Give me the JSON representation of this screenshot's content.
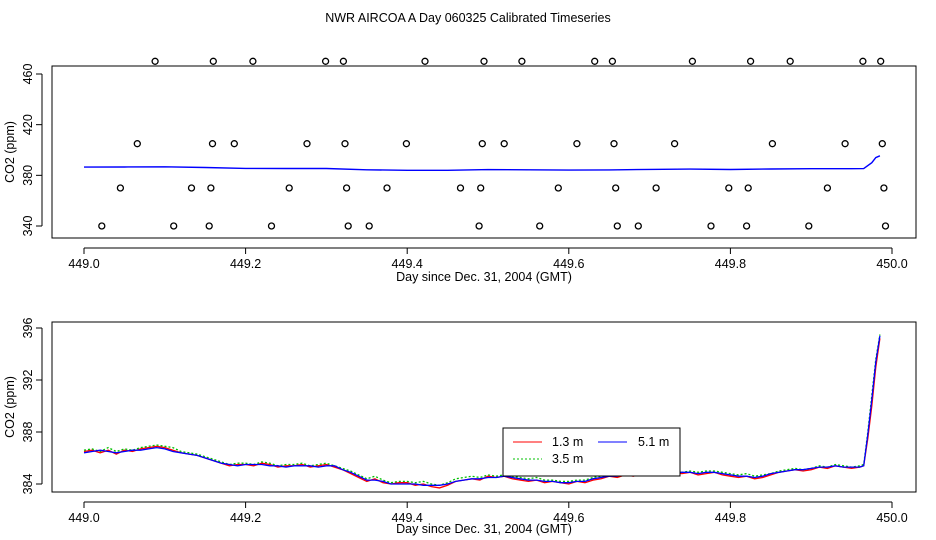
{
  "title": "NWR AIRCOA A  Day 060325  Calibrated Timeseries",
  "chart_data": [
    {
      "type": "scatter",
      "xlabel": "Day since Dec. 31, 2004 (GMT)",
      "ylabel": "CO2 (ppm)",
      "xlim": [
        449.0,
        450.0
      ],
      "ylim": [
        335,
        470
      ],
      "xticks": [
        449.0,
        449.2,
        449.4,
        449.6,
        449.8,
        450.0
      ],
      "xtick_labels": [
        "449.0",
        "449.2",
        "449.4",
        "449.6",
        "449.8",
        "450.0"
      ],
      "yticks": [
        340,
        380,
        420,
        460
      ],
      "ytick_labels": [
        "340",
        "380",
        "420",
        "460"
      ],
      "grid": false,
      "calibration_points": [
        {
          "x": 449.022,
          "y": 340
        },
        {
          "x": 449.045,
          "y": 370
        },
        {
          "x": 449.066,
          "y": 405
        },
        {
          "x": 449.088,
          "y": 470
        },
        {
          "x": 449.111,
          "y": 340
        },
        {
          "x": 449.133,
          "y": 370
        },
        {
          "x": 449.155,
          "y": 340
        },
        {
          "x": 449.157,
          "y": 370
        },
        {
          "x": 449.159,
          "y": 405
        },
        {
          "x": 449.16,
          "y": 470
        },
        {
          "x": 449.186,
          "y": 405
        },
        {
          "x": 449.209,
          "y": 470
        },
        {
          "x": 449.232,
          "y": 340
        },
        {
          "x": 449.254,
          "y": 370
        },
        {
          "x": 449.276,
          "y": 405
        },
        {
          "x": 449.299,
          "y": 470
        },
        {
          "x": 449.321,
          "y": 470
        },
        {
          "x": 449.323,
          "y": 405
        },
        {
          "x": 449.325,
          "y": 370
        },
        {
          "x": 449.327,
          "y": 340
        },
        {
          "x": 449.353,
          "y": 340
        },
        {
          "x": 449.375,
          "y": 370
        },
        {
          "x": 449.399,
          "y": 405
        },
        {
          "x": 449.422,
          "y": 470
        },
        {
          "x": 449.466,
          "y": 370
        },
        {
          "x": 449.489,
          "y": 340
        },
        {
          "x": 449.491,
          "y": 370
        },
        {
          "x": 449.493,
          "y": 405
        },
        {
          "x": 449.495,
          "y": 470
        },
        {
          "x": 449.52,
          "y": 405
        },
        {
          "x": 449.542,
          "y": 470
        },
        {
          "x": 449.564,
          "y": 340
        },
        {
          "x": 449.587,
          "y": 370
        },
        {
          "x": 449.61,
          "y": 405
        },
        {
          "x": 449.632,
          "y": 470
        },
        {
          "x": 449.654,
          "y": 470
        },
        {
          "x": 449.656,
          "y": 405
        },
        {
          "x": 449.658,
          "y": 370
        },
        {
          "x": 449.66,
          "y": 340
        },
        {
          "x": 449.686,
          "y": 340
        },
        {
          "x": 449.708,
          "y": 370
        },
        {
          "x": 449.731,
          "y": 405
        },
        {
          "x": 449.753,
          "y": 470
        },
        {
          "x": 449.776,
          "y": 340
        },
        {
          "x": 449.798,
          "y": 370
        },
        {
          "x": 449.82,
          "y": 340
        },
        {
          "x": 449.822,
          "y": 370
        },
        {
          "x": 449.825,
          "y": 470
        },
        {
          "x": 449.852,
          "y": 405
        },
        {
          "x": 449.874,
          "y": 470
        },
        {
          "x": 449.897,
          "y": 340
        },
        {
          "x": 449.92,
          "y": 370
        },
        {
          "x": 449.942,
          "y": 405
        },
        {
          "x": 449.964,
          "y": 470
        },
        {
          "x": 449.986,
          "y": 470
        },
        {
          "x": 449.988,
          "y": 405
        },
        {
          "x": 449.99,
          "y": 370
        },
        {
          "x": 449.992,
          "y": 340
        }
      ],
      "ambient_line": {
        "color": "#0000ff",
        "x": [
          449.0,
          449.05,
          449.1,
          449.15,
          449.2,
          449.25,
          449.3,
          449.35,
          449.4,
          449.45,
          449.5,
          449.55,
          449.6,
          449.65,
          449.7,
          449.75,
          449.8,
          449.85,
          449.9,
          449.95,
          449.965,
          449.975,
          449.98,
          449.985
        ],
        "y": [
          386.5,
          386.6,
          386.7,
          386.2,
          385.5,
          385.4,
          385.4,
          384.4,
          384.0,
          384.0,
          384.5,
          384.4,
          384.1,
          384.3,
          384.7,
          384.9,
          384.6,
          385.0,
          385.2,
          385.2,
          385.3,
          390,
          394,
          395.4
        ]
      }
    },
    {
      "type": "line",
      "xlabel": "Day since Dec. 31, 2004 (GMT)",
      "ylabel": "CO2 (ppm)",
      "xlim": [
        449.0,
        450.0
      ],
      "ylim": [
        383.5,
        396.3
      ],
      "xticks": [
        449.0,
        449.2,
        449.4,
        449.6,
        449.8,
        450.0
      ],
      "xtick_labels": [
        "449.0",
        "449.2",
        "449.4",
        "449.6",
        "449.8",
        "450.0"
      ],
      "yticks": [
        384,
        388,
        392,
        396
      ],
      "ytick_labels": [
        "384",
        "388",
        "392",
        "396"
      ],
      "grid": false,
      "legend_position": "bottom-center",
      "x": [
        449.0,
        449.01,
        449.02,
        449.03,
        449.04,
        449.05,
        449.06,
        449.07,
        449.08,
        449.09,
        449.1,
        449.11,
        449.12,
        449.13,
        449.14,
        449.15,
        449.16,
        449.17,
        449.18,
        449.19,
        449.2,
        449.21,
        449.22,
        449.23,
        449.24,
        449.25,
        449.26,
        449.27,
        449.28,
        449.29,
        449.3,
        449.31,
        449.32,
        449.33,
        449.34,
        449.35,
        449.36,
        449.37,
        449.38,
        449.39,
        449.4,
        449.41,
        449.42,
        449.43,
        449.44,
        449.45,
        449.46,
        449.47,
        449.48,
        449.49,
        449.5,
        449.51,
        449.52,
        449.53,
        449.54,
        449.55,
        449.56,
        449.57,
        449.58,
        449.59,
        449.6,
        449.61,
        449.62,
        449.63,
        449.64,
        449.65,
        449.66,
        449.67,
        449.68,
        449.69,
        449.7,
        449.71,
        449.72,
        449.73,
        449.74,
        449.75,
        449.76,
        449.77,
        449.78,
        449.79,
        449.8,
        449.81,
        449.82,
        449.83,
        449.84,
        449.85,
        449.86,
        449.87,
        449.88,
        449.89,
        449.9,
        449.91,
        449.92,
        449.93,
        449.94,
        449.95,
        449.96,
        449.965,
        449.97,
        449.975,
        449.98,
        449.985
      ],
      "series": [
        {
          "name": "1.3 m",
          "color": "#ff0000",
          "values": [
            386.5,
            386.6,
            386.4,
            386.6,
            386.3,
            386.6,
            386.5,
            386.7,
            386.8,
            386.9,
            386.8,
            386.6,
            386.4,
            386.3,
            386.2,
            386.0,
            385.8,
            385.6,
            385.4,
            385.5,
            385.5,
            385.4,
            385.6,
            385.5,
            385.3,
            385.4,
            385.4,
            385.5,
            385.3,
            385.4,
            385.5,
            385.3,
            385.1,
            384.8,
            384.5,
            384.2,
            384.4,
            384.1,
            384.0,
            384.1,
            384.1,
            383.9,
            384.0,
            383.8,
            383.7,
            383.9,
            384.2,
            384.3,
            384.4,
            384.3,
            384.6,
            384.5,
            384.6,
            384.4,
            384.3,
            384.2,
            384.3,
            384.1,
            384.2,
            384.1,
            384.0,
            384.2,
            384.1,
            384.3,
            384.4,
            384.6,
            384.5,
            384.7,
            384.6,
            384.8,
            384.7,
            384.8,
            384.7,
            384.9,
            384.8,
            384.9,
            384.7,
            384.8,
            384.9,
            384.7,
            384.6,
            384.5,
            384.6,
            384.4,
            384.5,
            384.7,
            384.9,
            385.0,
            385.1,
            385.0,
            385.1,
            385.3,
            385.2,
            385.4,
            385.3,
            385.2,
            385.3,
            385.4,
            387.5,
            390.0,
            393.0,
            395.2
          ]
        },
        {
          "name": "3.5 m",
          "color": "#00c000",
          "values": [
            386.6,
            386.7,
            386.5,
            386.8,
            386.5,
            386.7,
            386.6,
            386.8,
            386.9,
            387.0,
            386.9,
            386.8,
            386.5,
            386.4,
            386.3,
            386.1,
            385.9,
            385.7,
            385.5,
            385.6,
            385.6,
            385.5,
            385.7,
            385.6,
            385.4,
            385.5,
            385.5,
            385.6,
            385.4,
            385.5,
            385.6,
            385.4,
            385.2,
            385.0,
            384.7,
            384.4,
            384.6,
            384.3,
            384.1,
            384.2,
            384.2,
            384.1,
            384.2,
            384.0,
            383.9,
            384.1,
            384.4,
            384.5,
            384.6,
            384.5,
            384.7,
            384.6,
            384.7,
            384.6,
            384.5,
            384.4,
            384.5,
            384.3,
            384.3,
            384.2,
            384.2,
            384.3,
            384.3,
            384.5,
            384.6,
            384.7,
            384.7,
            384.9,
            384.8,
            384.9,
            384.9,
            385.0,
            384.9,
            385.0,
            384.9,
            385.0,
            384.9,
            385.0,
            385.0,
            384.9,
            384.8,
            384.7,
            384.8,
            384.6,
            384.7,
            384.8,
            385.0,
            385.1,
            385.2,
            385.1,
            385.2,
            385.4,
            385.3,
            385.5,
            385.4,
            385.3,
            385.4,
            385.5,
            388.0,
            390.8,
            393.6,
            395.5
          ]
        },
        {
          "name": "5.1 m",
          "color": "#0000ff",
          "values": [
            386.4,
            386.5,
            386.6,
            386.5,
            386.4,
            386.5,
            386.6,
            386.6,
            386.7,
            386.8,
            386.7,
            386.5,
            386.4,
            386.3,
            386.2,
            386.0,
            385.8,
            385.6,
            385.5,
            385.4,
            385.5,
            385.5,
            385.5,
            385.4,
            385.4,
            385.3,
            385.4,
            385.4,
            385.4,
            385.3,
            385.4,
            385.4,
            385.1,
            384.9,
            384.6,
            384.3,
            384.3,
            384.2,
            384.0,
            384.0,
            384.0,
            384.0,
            383.9,
            383.9,
            383.9,
            384.0,
            384.2,
            384.3,
            384.4,
            384.4,
            384.5,
            384.5,
            384.6,
            384.5,
            384.4,
            384.3,
            384.3,
            384.2,
            384.2,
            384.1,
            384.1,
            384.2,
            384.2,
            384.4,
            384.5,
            384.6,
            384.6,
            384.8,
            384.7,
            384.8,
            384.8,
            384.9,
            384.8,
            384.9,
            384.9,
            384.9,
            384.8,
            384.9,
            384.9,
            384.8,
            384.7,
            384.6,
            384.6,
            384.5,
            384.6,
            384.8,
            384.9,
            385.0,
            385.1,
            385.1,
            385.2,
            385.3,
            385.3,
            385.4,
            385.3,
            385.3,
            385.3,
            385.4,
            387.8,
            390.5,
            393.4,
            395.4
          ]
        }
      ]
    }
  ]
}
